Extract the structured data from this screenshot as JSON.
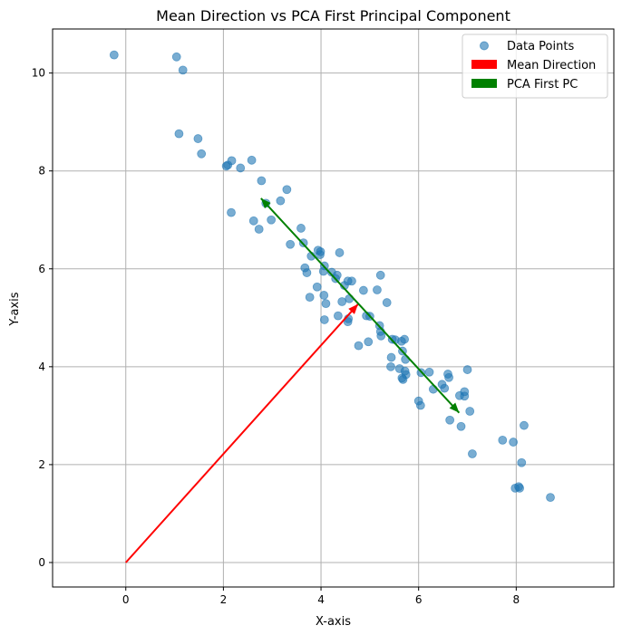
{
  "chart_data": {
    "type": "scatter",
    "title": "Mean Direction vs PCA First Principal Component",
    "xlabel": "X-axis",
    "ylabel": "Y-axis",
    "xlim": [
      -1.5,
      10.0
    ],
    "ylim": [
      -0.5,
      10.9
    ],
    "xticks": [
      0,
      2,
      4,
      6,
      8
    ],
    "yticks": [
      0,
      2,
      4,
      6,
      8,
      10
    ],
    "grid": true,
    "legend_position": "top-right",
    "colors": {
      "points": "#1f77b4",
      "mean_direction": "#ff0000",
      "pca": "#008000",
      "grid": "#b0b0b0"
    },
    "legend": [
      {
        "label": "Data Points",
        "kind": "point"
      },
      {
        "label": "Mean Direction",
        "kind": "mean"
      },
      {
        "label": "PCA First PC",
        "kind": "pca"
      }
    ],
    "series": [
      {
        "name": "Data Points",
        "points": [
          [
            -0.24,
            10.37
          ],
          [
            1.04,
            10.33
          ],
          [
            1.17,
            10.06
          ],
          [
            1.09,
            8.76
          ],
          [
            1.48,
            8.66
          ],
          [
            1.55,
            8.35
          ],
          [
            2.06,
            8.1
          ],
          [
            2.09,
            8.12
          ],
          [
            2.17,
            8.21
          ],
          [
            2.35,
            8.06
          ],
          [
            2.58,
            8.22
          ],
          [
            2.16,
            7.15
          ],
          [
            2.78,
            7.8
          ],
          [
            3.3,
            7.62
          ],
          [
            2.87,
            7.34
          ],
          [
            3.17,
            7.39
          ],
          [
            2.62,
            6.98
          ],
          [
            2.73,
            6.81
          ],
          [
            2.98,
            7.0
          ],
          [
            3.59,
            6.83
          ],
          [
            3.37,
            6.5
          ],
          [
            3.64,
            6.53
          ],
          [
            3.94,
            6.38
          ],
          [
            3.99,
            6.35
          ],
          [
            3.98,
            6.29
          ],
          [
            4.38,
            6.33
          ],
          [
            3.8,
            6.26
          ],
          [
            3.67,
            6.02
          ],
          [
            4.07,
            6.06
          ],
          [
            4.05,
            5.95
          ],
          [
            3.71,
            5.92
          ],
          [
            4.22,
            5.93
          ],
          [
            4.33,
            5.87
          ],
          [
            4.3,
            5.8
          ],
          [
            4.55,
            5.75
          ],
          [
            4.63,
            5.75
          ],
          [
            4.48,
            5.66
          ],
          [
            3.92,
            5.63
          ],
          [
            4.06,
            5.46
          ],
          [
            3.77,
            5.42
          ],
          [
            4.1,
            5.29
          ],
          [
            4.43,
            5.33
          ],
          [
            4.58,
            5.39
          ],
          [
            4.87,
            5.56
          ],
          [
            5.15,
            5.57
          ],
          [
            5.22,
            5.87
          ],
          [
            5.35,
            5.31
          ],
          [
            4.07,
            4.96
          ],
          [
            4.35,
            5.04
          ],
          [
            4.56,
            4.98
          ],
          [
            4.55,
            4.92
          ],
          [
            4.93,
            5.04
          ],
          [
            5.0,
            5.03
          ],
          [
            5.2,
            4.84
          ],
          [
            5.22,
            4.72
          ],
          [
            5.23,
            4.63
          ],
          [
            4.97,
            4.51
          ],
          [
            4.77,
            4.43
          ],
          [
            5.46,
            4.56
          ],
          [
            5.52,
            4.55
          ],
          [
            5.65,
            4.52
          ],
          [
            5.71,
            4.56
          ],
          [
            5.67,
            4.32
          ],
          [
            5.44,
            4.19
          ],
          [
            5.73,
            4.15
          ],
          [
            5.43,
            4.0
          ],
          [
            5.61,
            3.96
          ],
          [
            5.72,
            3.91
          ],
          [
            5.74,
            3.84
          ],
          [
            5.66,
            3.77
          ],
          [
            5.68,
            3.74
          ],
          [
            6.05,
            3.88
          ],
          [
            6.22,
            3.89
          ],
          [
            6.6,
            3.85
          ],
          [
            6.62,
            3.78
          ],
          [
            7.0,
            3.94
          ],
          [
            6.48,
            3.64
          ],
          [
            6.53,
            3.56
          ],
          [
            6.3,
            3.54
          ],
          [
            6.94,
            3.49
          ],
          [
            6.84,
            3.41
          ],
          [
            6.94,
            3.4
          ],
          [
            6.0,
            3.3
          ],
          [
            6.04,
            3.21
          ],
          [
            7.05,
            3.09
          ],
          [
            6.64,
            2.91
          ],
          [
            6.87,
            2.78
          ],
          [
            8.16,
            2.8
          ],
          [
            7.72,
            2.5
          ],
          [
            7.94,
            2.46
          ],
          [
            7.1,
            2.22
          ],
          [
            8.11,
            2.04
          ],
          [
            7.98,
            1.52
          ],
          [
            8.07,
            1.52
          ],
          [
            8.05,
            1.55
          ],
          [
            8.7,
            1.33
          ]
        ]
      }
    ],
    "vectors": [
      {
        "name": "Mean Direction",
        "from": [
          0,
          0
        ],
        "to": [
          4.76,
          5.28
        ]
      },
      {
        "name": "PCA First PC",
        "from": [
          4.76,
          5.28
        ],
        "to": [
          2.77,
          7.44
        ],
        "double_headed": true,
        "other_end": [
          6.83,
          3.06
        ]
      }
    ]
  }
}
